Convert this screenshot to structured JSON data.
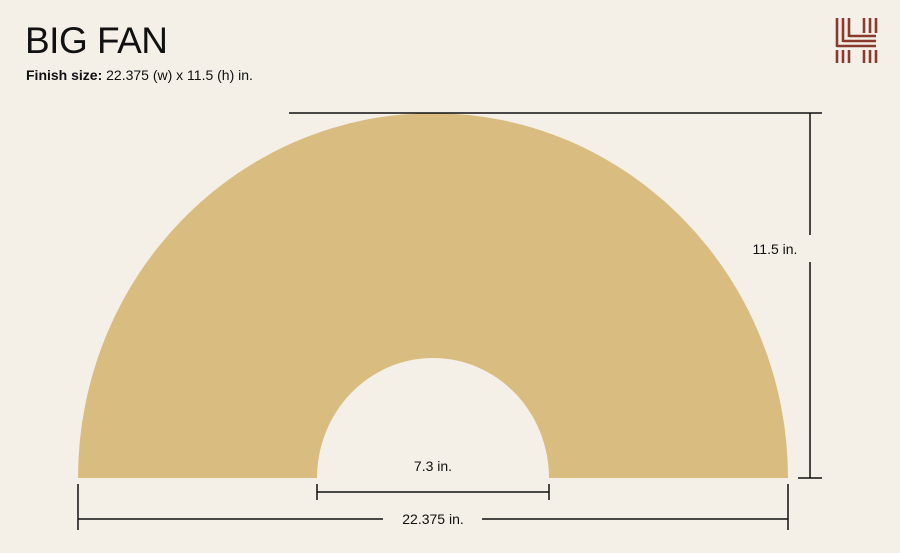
{
  "header": {
    "title": "BIG FAN",
    "subtitle_label": "Finish size:",
    "subtitle_value": " 22.375 (w) x 11.5 (h) in."
  },
  "diagram": {
    "shape": "semi-annulus fan",
    "fill_color": "#d9bc7f",
    "line_color": "#111111",
    "dimensions": {
      "height_label": "11.5 in.",
      "inner_width_label": "7.3 in.",
      "outer_width_label": "22.375 in."
    }
  },
  "logo": {
    "color": "#8b3a2e",
    "icon": "striped-h-logo"
  }
}
